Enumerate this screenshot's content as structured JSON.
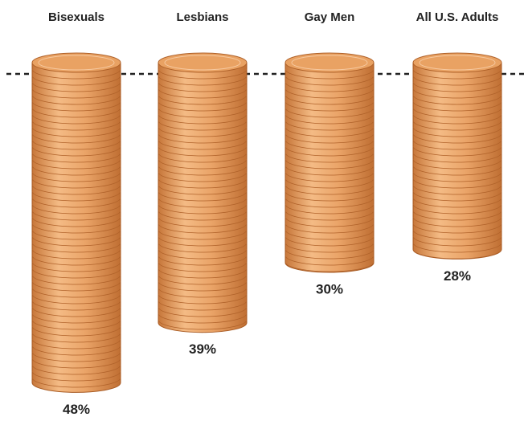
{
  "chart_data": {
    "type": "bar",
    "categories": [
      "Bisexuals",
      "Lesbians",
      "Gay Men",
      "All U.S. Adults"
    ],
    "values": [
      48,
      39,
      30,
      28
    ],
    "value_labels": [
      "48%",
      "39%",
      "30%",
      "28%"
    ],
    "color": "#e9a263"
  }
}
